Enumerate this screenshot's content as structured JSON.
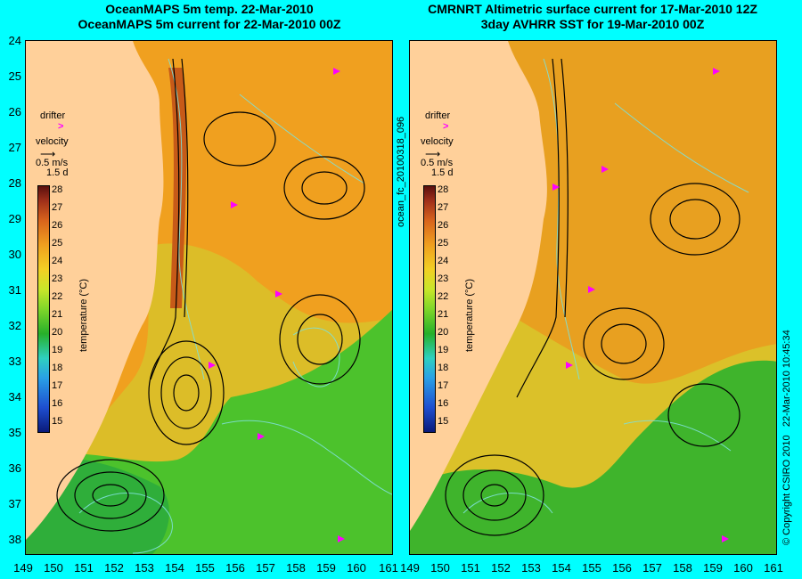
{
  "titles": {
    "left": {
      "line1": "OceanMAPS 5m temp. 22-Mar-2010",
      "line2": "OceanMAPS 5m current for 22-Mar-2010 00Z"
    },
    "right": {
      "line1": "CMRNRT Altimetric surface current for 17-Mar-2010 12Z",
      "line2": "3day AVHRR SST for 19-Mar-2010 00Z"
    }
  },
  "axes": {
    "y_labels": [
      "24",
      "25",
      "26",
      "27",
      "28",
      "29",
      "30",
      "31",
      "32",
      "33",
      "34",
      "35",
      "36",
      "37",
      "38"
    ],
    "x_labels": [
      "149",
      "150",
      "151",
      "152",
      "153",
      "154",
      "155",
      "156",
      "157",
      "158",
      "159",
      "160",
      "161"
    ]
  },
  "legend": {
    "drifter": "drifter",
    "velocity": "velocity",
    "velocity_scale": "0.5 m/s",
    "velocity_duration": "1.5 d",
    "colorbar_ticks": [
      "28",
      "27",
      "26",
      "25",
      "24",
      "23",
      "22",
      "21",
      "20",
      "19",
      "18",
      "17",
      "16",
      "15"
    ],
    "colorbar_title": "temperature (°C)",
    "drifter_color": "#ff00ff"
  },
  "side_text": {
    "image_id": "ocean_fc_20100318_096",
    "copyright": "© Copyright CSIRO 2010",
    "timestamp": "22-Mar-2010 10:45:34"
  },
  "colors": {
    "land": "#ffd09a",
    "background": "#00ffff",
    "warm": "#f0a01f",
    "cool": "#3cb42c",
    "contour": "#7ee0d8"
  }
}
